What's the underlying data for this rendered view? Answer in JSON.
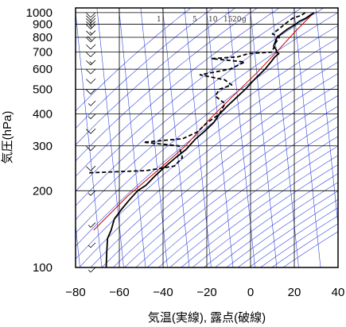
{
  "chart_data": {
    "type": "line",
    "chart_kind": "skew-T log-P thermodynamic diagram",
    "xlabel": "気温(実線), 露点(破線)",
    "ylabel": "気圧(hPa)",
    "xlim": [
      -80,
      40
    ],
    "ylim": [
      1050,
      100
    ],
    "y_scale": "log",
    "grid": true,
    "x_ticks": [
      -80,
      -60,
      -40,
      -20,
      0,
      20,
      40
    ],
    "y_ticks": [
      100,
      200,
      300,
      400,
      500,
      600,
      700,
      800,
      900,
      1000
    ],
    "mixing_ratio_labels": [
      "1",
      "5",
      "10",
      "15",
      "20",
      "g"
    ],
    "colors": {
      "temperature": "#000000",
      "dewpoint": "#000000",
      "parcel": "#cc0000",
      "guides": "#3344dd",
      "grid": "#000000",
      "wind": "#000000"
    },
    "series": [
      {
        "line_style": "solid",
        "points": [
          [
            29,
            1000
          ],
          [
            27,
            975
          ],
          [
            25,
            950
          ],
          [
            22,
            925
          ],
          [
            20,
            900
          ],
          [
            16,
            860
          ],
          [
            13,
            825
          ],
          [
            11,
            800
          ],
          [
            10,
            770
          ],
          [
            9,
            740
          ],
          [
            10,
            715
          ],
          [
            10,
            700
          ],
          [
            11,
            690
          ],
          [
            9,
            670
          ],
          [
            7,
            640
          ],
          [
            4,
            600
          ],
          [
            1,
            570
          ],
          [
            -2,
            540
          ],
          [
            -4,
            520
          ],
          [
            -6,
            500
          ],
          [
            -11,
            460
          ],
          [
            -15,
            430
          ],
          [
            -19,
            400
          ],
          [
            -22,
            370
          ],
          [
            -27,
            340
          ],
          [
            -31,
            320
          ],
          [
            -36,
            290
          ],
          [
            -41,
            270
          ],
          [
            -46,
            250
          ],
          [
            -51,
            230
          ],
          [
            -56,
            210
          ],
          [
            -60,
            200
          ],
          [
            -64,
            185
          ],
          [
            -68,
            170
          ],
          [
            -72,
            155
          ],
          [
            -74,
            140
          ],
          [
            -76,
            130
          ],
          [
            -77,
            115
          ],
          [
            -78,
            100
          ]
        ]
      },
      {
        "line_style": "dashed",
        "points": [
          [
            25,
            1000
          ],
          [
            23,
            975
          ],
          [
            19,
            950
          ],
          [
            17,
            925
          ],
          [
            15,
            900
          ],
          [
            12,
            860
          ],
          [
            9,
            825
          ],
          [
            12,
            800
          ],
          [
            10,
            760
          ],
          [
            8,
            700
          ],
          [
            -3,
            690
          ],
          [
            -8,
            670
          ],
          [
            -20,
            660
          ],
          [
            -5,
            640
          ],
          [
            -12,
            600
          ],
          [
            -26,
            570
          ],
          [
            -15,
            545
          ],
          [
            -12,
            520
          ],
          [
            -18,
            500
          ],
          [
            -20,
            470
          ],
          [
            -16,
            440
          ],
          [
            -19,
            400
          ],
          [
            -25,
            370
          ],
          [
            -30,
            340
          ],
          [
            -37,
            320
          ],
          [
            -55,
            310
          ],
          [
            -39,
            300
          ],
          [
            -38,
            270
          ],
          [
            -42,
            250
          ],
          [
            -55,
            240
          ],
          [
            -82,
            235
          ]
        ]
      },
      {
        "points": [
          [
            29,
            1000
          ],
          [
            20,
            850
          ],
          [
            10,
            700
          ],
          [
            0,
            580
          ],
          [
            -12,
            470
          ],
          [
            -24,
            380
          ],
          [
            -36,
            300
          ],
          [
            -50,
            240
          ],
          [
            -65,
            190
          ],
          [
            -82,
            140
          ]
        ]
      }
    ],
    "wind_barbs": [
      {
        "p": 1000,
        "speed_kt": 10
      },
      {
        "p": 975,
        "speed_kt": 10
      },
      {
        "p": 950,
        "speed_kt": 15
      },
      {
        "p": 925,
        "speed_kt": 15
      },
      {
        "p": 900,
        "speed_kt": 15
      },
      {
        "p": 850,
        "speed_kt": 15
      },
      {
        "p": 800,
        "speed_kt": 20
      },
      {
        "p": 750,
        "speed_kt": 10
      },
      {
        "p": 700,
        "speed_kt": 10
      },
      {
        "p": 650,
        "speed_kt": 15
      },
      {
        "p": 600,
        "speed_kt": 10
      },
      {
        "p": 550,
        "speed_kt": 10
      },
      {
        "p": 500,
        "speed_kt": 10
      },
      {
        "p": 450,
        "speed_kt": 5
      },
      {
        "p": 400,
        "speed_kt": 5
      },
      {
        "p": 350,
        "speed_kt": 10
      },
      {
        "p": 300,
        "speed_kt": 10
      },
      {
        "p": 250,
        "speed_kt": 10
      },
      {
        "p": 200,
        "speed_kt": 5
      },
      {
        "p": 150,
        "speed_kt": 5
      },
      {
        "p": 125,
        "speed_kt": 5
      },
      {
        "p": 100,
        "speed_kt": 5
      }
    ]
  }
}
